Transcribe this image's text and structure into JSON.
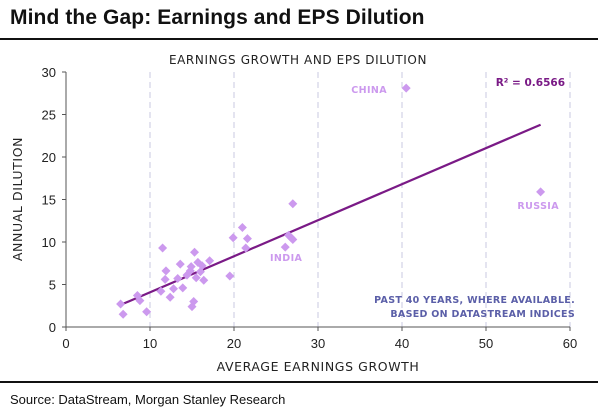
{
  "header": {
    "title": "Mind the Gap: Earnings and EPS Dilution"
  },
  "footer": {
    "source": "Source: DataStream, Morgan Stanley Research"
  },
  "colors": {
    "points": "#cc99ee",
    "trendline": "#7a1a86",
    "note": "#5b5fa8",
    "grid": "#c8c8e0"
  },
  "chart_data": {
    "type": "scatter",
    "title": "EARNINGS GROWTH AND EPS DILUTION",
    "xlabel": "AVERAGE EARNINGS GROWTH",
    "ylabel": "ANNUAL DILUTION",
    "xlim": [
      0,
      60
    ],
    "ylim": [
      0,
      30
    ],
    "xticks": [
      "0",
      "10",
      "20",
      "30",
      "40",
      "50",
      "60"
    ],
    "yticks": [
      "0",
      "5",
      "10",
      "15",
      "20",
      "25",
      "30"
    ],
    "x_gridlines": true,
    "y_gridlines": false,
    "points": [
      {
        "x": 6.5,
        "y": 2.7
      },
      {
        "x": 6.8,
        "y": 1.5
      },
      {
        "x": 8.5,
        "y": 3.7
      },
      {
        "x": 8.8,
        "y": 3.1
      },
      {
        "x": 9.6,
        "y": 1.8
      },
      {
        "x": 11.3,
        "y": 4.2
      },
      {
        "x": 11.5,
        "y": 9.3
      },
      {
        "x": 11.8,
        "y": 5.6
      },
      {
        "x": 11.9,
        "y": 6.6
      },
      {
        "x": 12.4,
        "y": 3.5
      },
      {
        "x": 12.8,
        "y": 4.5
      },
      {
        "x": 13.3,
        "y": 5.7
      },
      {
        "x": 13.6,
        "y": 7.4
      },
      {
        "x": 13.9,
        "y": 4.6
      },
      {
        "x": 14.4,
        "y": 6.1
      },
      {
        "x": 14.8,
        "y": 6.6
      },
      {
        "x": 14.9,
        "y": 7.1
      },
      {
        "x": 15.0,
        "y": 2.4
      },
      {
        "x": 15.2,
        "y": 3.0
      },
      {
        "x": 15.3,
        "y": 8.8
      },
      {
        "x": 15.5,
        "y": 5.8
      },
      {
        "x": 15.7,
        "y": 7.6
      },
      {
        "x": 16.0,
        "y": 6.5
      },
      {
        "x": 16.2,
        "y": 7.2
      },
      {
        "x": 16.4,
        "y": 5.5
      },
      {
        "x": 17.1,
        "y": 7.8
      },
      {
        "x": 19.5,
        "y": 6.0
      },
      {
        "x": 19.9,
        "y": 10.5
      },
      {
        "x": 21.0,
        "y": 11.7
      },
      {
        "x": 21.4,
        "y": 9.3
      },
      {
        "x": 21.6,
        "y": 10.4
      },
      {
        "x": 26.1,
        "y": 9.4
      },
      {
        "x": 26.5,
        "y": 10.8
      },
      {
        "x": 26.8,
        "y": 10.5
      },
      {
        "x": 27.0,
        "y": 10.3
      },
      {
        "x": 27.0,
        "y": 14.5
      },
      {
        "x": 40.5,
        "y": 28.1
      },
      {
        "x": 56.5,
        "y": 15.9
      }
    ],
    "trendline": {
      "x": [
        6.5,
        56.5
      ],
      "y": [
        2.6,
        23.8
      ]
    },
    "annotations": {
      "r2": "R² = 0.6566",
      "china": "CHINA",
      "russia": "RUSSIA",
      "india": "INDIA",
      "note_line1": "PAST 40 YEARS, WHERE AVAILABLE.",
      "note_line2": "BASED ON DATASTREAM INDICES"
    }
  }
}
